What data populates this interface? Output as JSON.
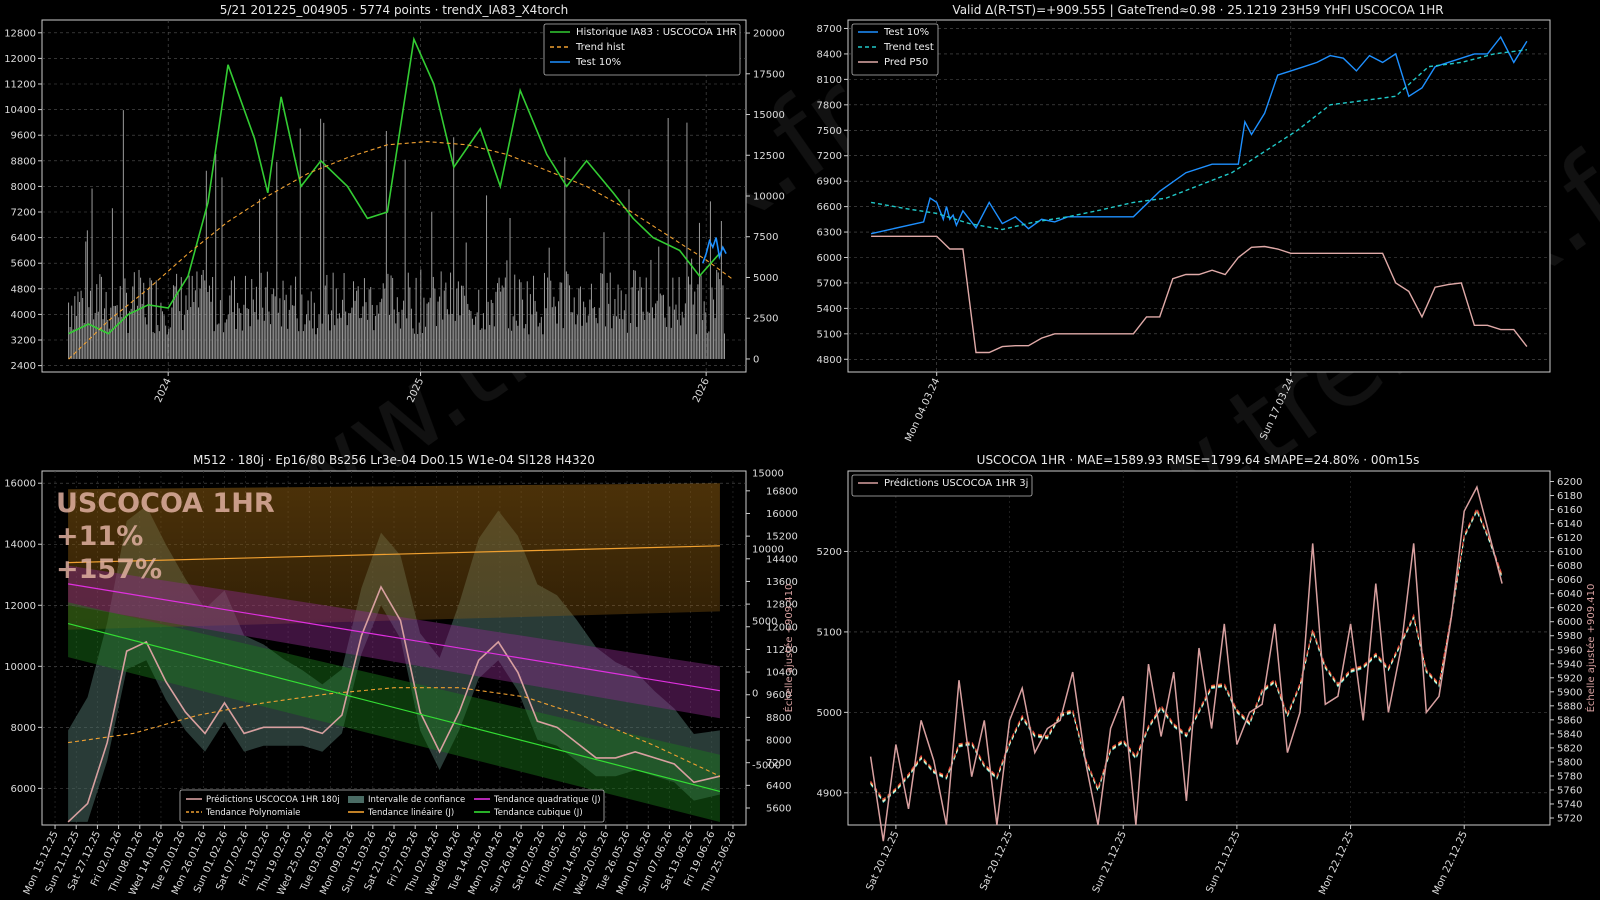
{
  "watermark": "©www.trendX.fr",
  "chart_data": [
    {
      "id": "tl",
      "type": "line",
      "title": "5/21 201225_004905 · 5774 points · trendX_IA83_X4torch",
      "ylim": [
        2200,
        13200
      ],
      "yticks": [
        2400,
        3200,
        4000,
        4800,
        5600,
        6400,
        7200,
        8000,
        8800,
        9600,
        10400,
        11200,
        12000,
        12800
      ],
      "y2lim": [
        -800,
        20800
      ],
      "y2ticks": [
        0,
        2500,
        5000,
        7500,
        10000,
        12500,
        15000,
        17500,
        20000
      ],
      "xticks": [
        "2024",
        "2025",
        "2026"
      ],
      "legend_position": "upper right",
      "grid": true,
      "series": [
        {
          "name": "Historique IA83 : USCOCOA 1HR",
          "color": "#33cc33",
          "style": "solid",
          "x": [
            0,
            3,
            6,
            9,
            12,
            15,
            18,
            21,
            24,
            28,
            30,
            32,
            35,
            38,
            42,
            45,
            48,
            52,
            55,
            58,
            62,
            65,
            68,
            72,
            75,
            78,
            82,
            85,
            88,
            92,
            95,
            98
          ],
          "y": [
            3400,
            3700,
            3400,
            4000,
            4300,
            4200,
            5200,
            7500,
            11800,
            9500,
            7800,
            10800,
            8000,
            8800,
            8000,
            7000,
            7200,
            12600,
            11200,
            8600,
            9800,
            8000,
            11000,
            9000,
            8000,
            8800,
            7800,
            7000,
            6400,
            6000,
            5200,
            5900
          ]
        },
        {
          "name": "Trend hist",
          "color": "#f0a030",
          "style": "dashed",
          "x": [
            0,
            6,
            12,
            18,
            24,
            30,
            36,
            42,
            48,
            54,
            60,
            66,
            72,
            78,
            84,
            90,
            96,
            100
          ],
          "y": [
            2600,
            3800,
            4800,
            5900,
            6900,
            7700,
            8400,
            8900,
            9300,
            9400,
            9300,
            9000,
            8500,
            8000,
            7300,
            6500,
            5700,
            5100
          ]
        },
        {
          "name": "Test 10%",
          "color": "#1e90ff",
          "style": "solid",
          "x": [
            95.5,
            96,
            96.5,
            97,
            97.5,
            98,
            98.5,
            99
          ],
          "y": [
            5600,
            5900,
            6300,
            6100,
            6400,
            5800,
            6100,
            5900
          ]
        }
      ]
    },
    {
      "id": "tr",
      "type": "line",
      "title": "Valid Δ(R-TST)=+909.555 | GateTrend≈0.98 · 25.1219 23H59 YHFI USCOCOA 1HR",
      "ylim": [
        4650,
        8800
      ],
      "yticks": [
        4800,
        5100,
        5400,
        5700,
        6000,
        6300,
        6600,
        6900,
        7200,
        7500,
        7800,
        8100,
        8400,
        8700
      ],
      "xticks": [
        "Mon 04.03.24",
        "Sun 17.03.24"
      ],
      "legend_position": "upper left",
      "grid": true,
      "series": [
        {
          "name": "Test 10%",
          "color": "#1e90ff",
          "style": "solid",
          "x": [
            0,
            8,
            9,
            10,
            11,
            11.5,
            12,
            12.5,
            13,
            14,
            16,
            18,
            20,
            22,
            24,
            26,
            28,
            30,
            32,
            36,
            40,
            44,
            48,
            52,
            56,
            57,
            58,
            60,
            62,
            64,
            66,
            68,
            70,
            72,
            74,
            76,
            78,
            80,
            82,
            84,
            86,
            88,
            90,
            92,
            94,
            96,
            98,
            100
          ],
          "y": [
            6280,
            6420,
            6700,
            6650,
            6450,
            6600,
            6450,
            6500,
            6380,
            6550,
            6350,
            6650,
            6400,
            6480,
            6340,
            6450,
            6420,
            6480,
            6480,
            6480,
            6480,
            6780,
            7000,
            7100,
            7100,
            7600,
            7450,
            7700,
            8150,
            8200,
            8250,
            8300,
            8380,
            8350,
            8200,
            8380,
            8300,
            8400,
            7900,
            8000,
            8250,
            8300,
            8350,
            8400,
            8400,
            8600,
            8300,
            8550
          ]
        },
        {
          "name": "Trend test",
          "color": "#20c8c8",
          "style": "dashed",
          "x": [
            0,
            5,
            10,
            15,
            20,
            25,
            30,
            35,
            40,
            45,
            50,
            55,
            60,
            65,
            70,
            75,
            80,
            85,
            90,
            95,
            100
          ],
          "y": [
            6650,
            6580,
            6520,
            6400,
            6330,
            6420,
            6480,
            6560,
            6650,
            6700,
            6850,
            7000,
            7250,
            7500,
            7800,
            7850,
            7900,
            8250,
            8300,
            8400,
            8450
          ]
        },
        {
          "name": "Pred P50",
          "color": "#e0aaa8",
          "style": "solid",
          "x": [
            0,
            10,
            12,
            14,
            16,
            18,
            20,
            22,
            24,
            26,
            28,
            30,
            32,
            34,
            36,
            38,
            40,
            42,
            44,
            46,
            48,
            50,
            52,
            54,
            56,
            58,
            60,
            62,
            64,
            66,
            68,
            70,
            72,
            74,
            76,
            78,
            80,
            82,
            84,
            86,
            88,
            90,
            92,
            94,
            96,
            98,
            100
          ],
          "y": [
            6250,
            6250,
            6100,
            6100,
            4880,
            4880,
            4950,
            4960,
            4960,
            5050,
            5100,
            5100,
            5100,
            5100,
            5100,
            5100,
            5100,
            5300,
            5300,
            5750,
            5800,
            5800,
            5850,
            5800,
            6000,
            6120,
            6130,
            6100,
            6050,
            6050,
            6050,
            6050,
            6050,
            6050,
            6050,
            6050,
            5700,
            5600,
            5300,
            5650,
            5680,
            5700,
            5200,
            5200,
            5150,
            5150,
            4950
          ]
        }
      ]
    },
    {
      "id": "bl",
      "type": "line",
      "title": "M512 · 180j · Ep16/80 Bs256 Lr3e-04 Do0.15 W1e-04 Sl128 H4320",
      "ylim": [
        4800,
        16400
      ],
      "yticks": [
        6000,
        8000,
        10000,
        12000,
        14000,
        16000
      ],
      "y2lim": [
        5000,
        17500
      ],
      "y2ticks": [
        5600,
        6400,
        7200,
        8000,
        8800,
        9600,
        10400,
        11200,
        12000,
        12800,
        13600,
        14400,
        15200,
        16000,
        16800
      ],
      "y3ticks": [
        "15000",
        "10000",
        "5000",
        "0",
        "-5000"
      ],
      "y2label": "Échelle ajustée +909.410",
      "xticks": [
        "Mon 15.12.25",
        "Sun 21.12.25",
        "Sat 27.12.25",
        "Fri 02.01.26",
        "Thu 08.01.26",
        "Wed 14.01.26",
        "Tue 20.01.26",
        "Mon 26.01.26",
        "Sun 01.02.26",
        "Sat 07.02.26",
        "Fri 13.02.26",
        "Thu 19.02.26",
        "Wed 25.02.26",
        "Tue 03.03.26",
        "Mon 09.03.26",
        "Sun 15.03.26",
        "Sat 21.03.26",
        "Fri 27.03.26",
        "Thu 02.04.26",
        "Wed 08.04.26",
        "Tue 14.04.26",
        "Mon 20.04.26",
        "Sun 26.04.26",
        "Sat 02.05.26",
        "Fri 08.05.26",
        "Thu 14.05.26",
        "Wed 20.05.26",
        "Tue 26.05.26",
        "Mon 01.06.26",
        "Sun 07.06.26",
        "Sat 13.06.26",
        "Fri 19.06.26",
        "Thu 25.06.26"
      ],
      "overlay": {
        "symbol": "USCOCOA 1HR",
        "pct1": "+11%",
        "pct2": "+157%"
      },
      "legend_position": "lower center",
      "grid": true,
      "series": [
        {
          "name": "Prédictions USCOCOA 1HR 180j",
          "color": "#d8a0a0",
          "x": [
            0,
            3,
            6,
            9,
            12,
            15,
            18,
            21,
            24,
            27,
            30,
            33,
            36,
            39,
            42,
            45,
            48,
            51,
            54,
            57,
            60,
            63,
            66,
            69,
            72,
            75,
            78,
            81,
            84,
            87,
            90,
            93,
            96,
            100
          ],
          "y": [
            4900,
            5500,
            7500,
            10500,
            10800,
            9500,
            8500,
            7800,
            8800,
            7800,
            8000,
            8000,
            8000,
            7800,
            8400,
            11000,
            12600,
            11500,
            8500,
            7200,
            8500,
            10200,
            10800,
            9800,
            8200,
            8000,
            7500,
            7000,
            7000,
            7200,
            7000,
            6800,
            6200,
            6400
          ]
        },
        {
          "name": "Intervalle de confiance",
          "color": "#4a6b64"
        },
        {
          "name": "Tendance quadratique (J)",
          "color": "#e030e0",
          "y_start": 12700,
          "y_end": 9200
        },
        {
          "name": "Tendance Polynomiale",
          "color": "#f0a030",
          "x": [
            0,
            10,
            20,
            30,
            40,
            50,
            60,
            70,
            80,
            90,
            100
          ],
          "y": [
            7500,
            7800,
            8400,
            8800,
            9100,
            9300,
            9300,
            9000,
            8300,
            7400,
            6400
          ]
        },
        {
          "name": "Tendance linéaire (J)",
          "color": "#f0a030",
          "y_start": 13400,
          "y_end": 13950
        },
        {
          "name": "Tendance cubique (J)",
          "color": "#33dd33",
          "y_start": 11400,
          "y_end": 5900
        }
      ]
    },
    {
      "id": "br",
      "type": "line",
      "title": "USCOCOA 1HR · MAE=1589.93 RMSE=1799.64 sMAPE=24.80% · 00m15s",
      "ylim": [
        4860,
        5300
      ],
      "yticks": [
        4900,
        5000,
        5100,
        5200
      ],
      "y2lim": [
        5710,
        6215
      ],
      "y2ticks": [
        5720,
        5740,
        5760,
        5780,
        5800,
        5820,
        5840,
        5860,
        5880,
        5900,
        5920,
        5940,
        5960,
        5980,
        6000,
        6020,
        6040,
        6060,
        6080,
        6100,
        6120,
        6140,
        6160,
        6180,
        6200
      ],
      "y2label": "Échelle ajustée +909.410",
      "xticks": [
        "Sat 20.12.25",
        "Sat 20.12.25",
        "Sun 21.12.25",
        "Sun 21.12.25",
        "Mon 22.12.25",
        "Mon 22.12.25"
      ],
      "legend_position": "upper left",
      "grid": true,
      "series": [
        {
          "name": "Prédictions USCOCOA 1HR 3j",
          "color": "#d8a0a0",
          "x": [
            0,
            2,
            4,
            6,
            8,
            10,
            12,
            14,
            16,
            18,
            20,
            22,
            24,
            26,
            28,
            30,
            32,
            34,
            36,
            38,
            40,
            42,
            44,
            46,
            48,
            50,
            52,
            54,
            56,
            58,
            60,
            62,
            64,
            66,
            68,
            70,
            72,
            74,
            76,
            78,
            80,
            82,
            84,
            86,
            88,
            90,
            92,
            94,
            96,
            98,
            100
          ],
          "y": [
            4945,
            4840,
            4960,
            4880,
            4990,
            4940,
            4860,
            5040,
            4920,
            4990,
            4860,
            4990,
            5030,
            4950,
            4980,
            4990,
            5050,
            4940,
            4860,
            4980,
            5020,
            4860,
            5060,
            4970,
            5050,
            4890,
            5080,
            4980,
            5110,
            4960,
            5000,
            5010,
            5110,
            4950,
            5000,
            5210,
            5010,
            5020,
            5110,
            4990,
            5160,
            5000,
            5080,
            5210,
            5000,
            5020,
            5120,
            5250,
            5280,
            5220,
            5160
          ]
        }
      ]
    }
  ]
}
